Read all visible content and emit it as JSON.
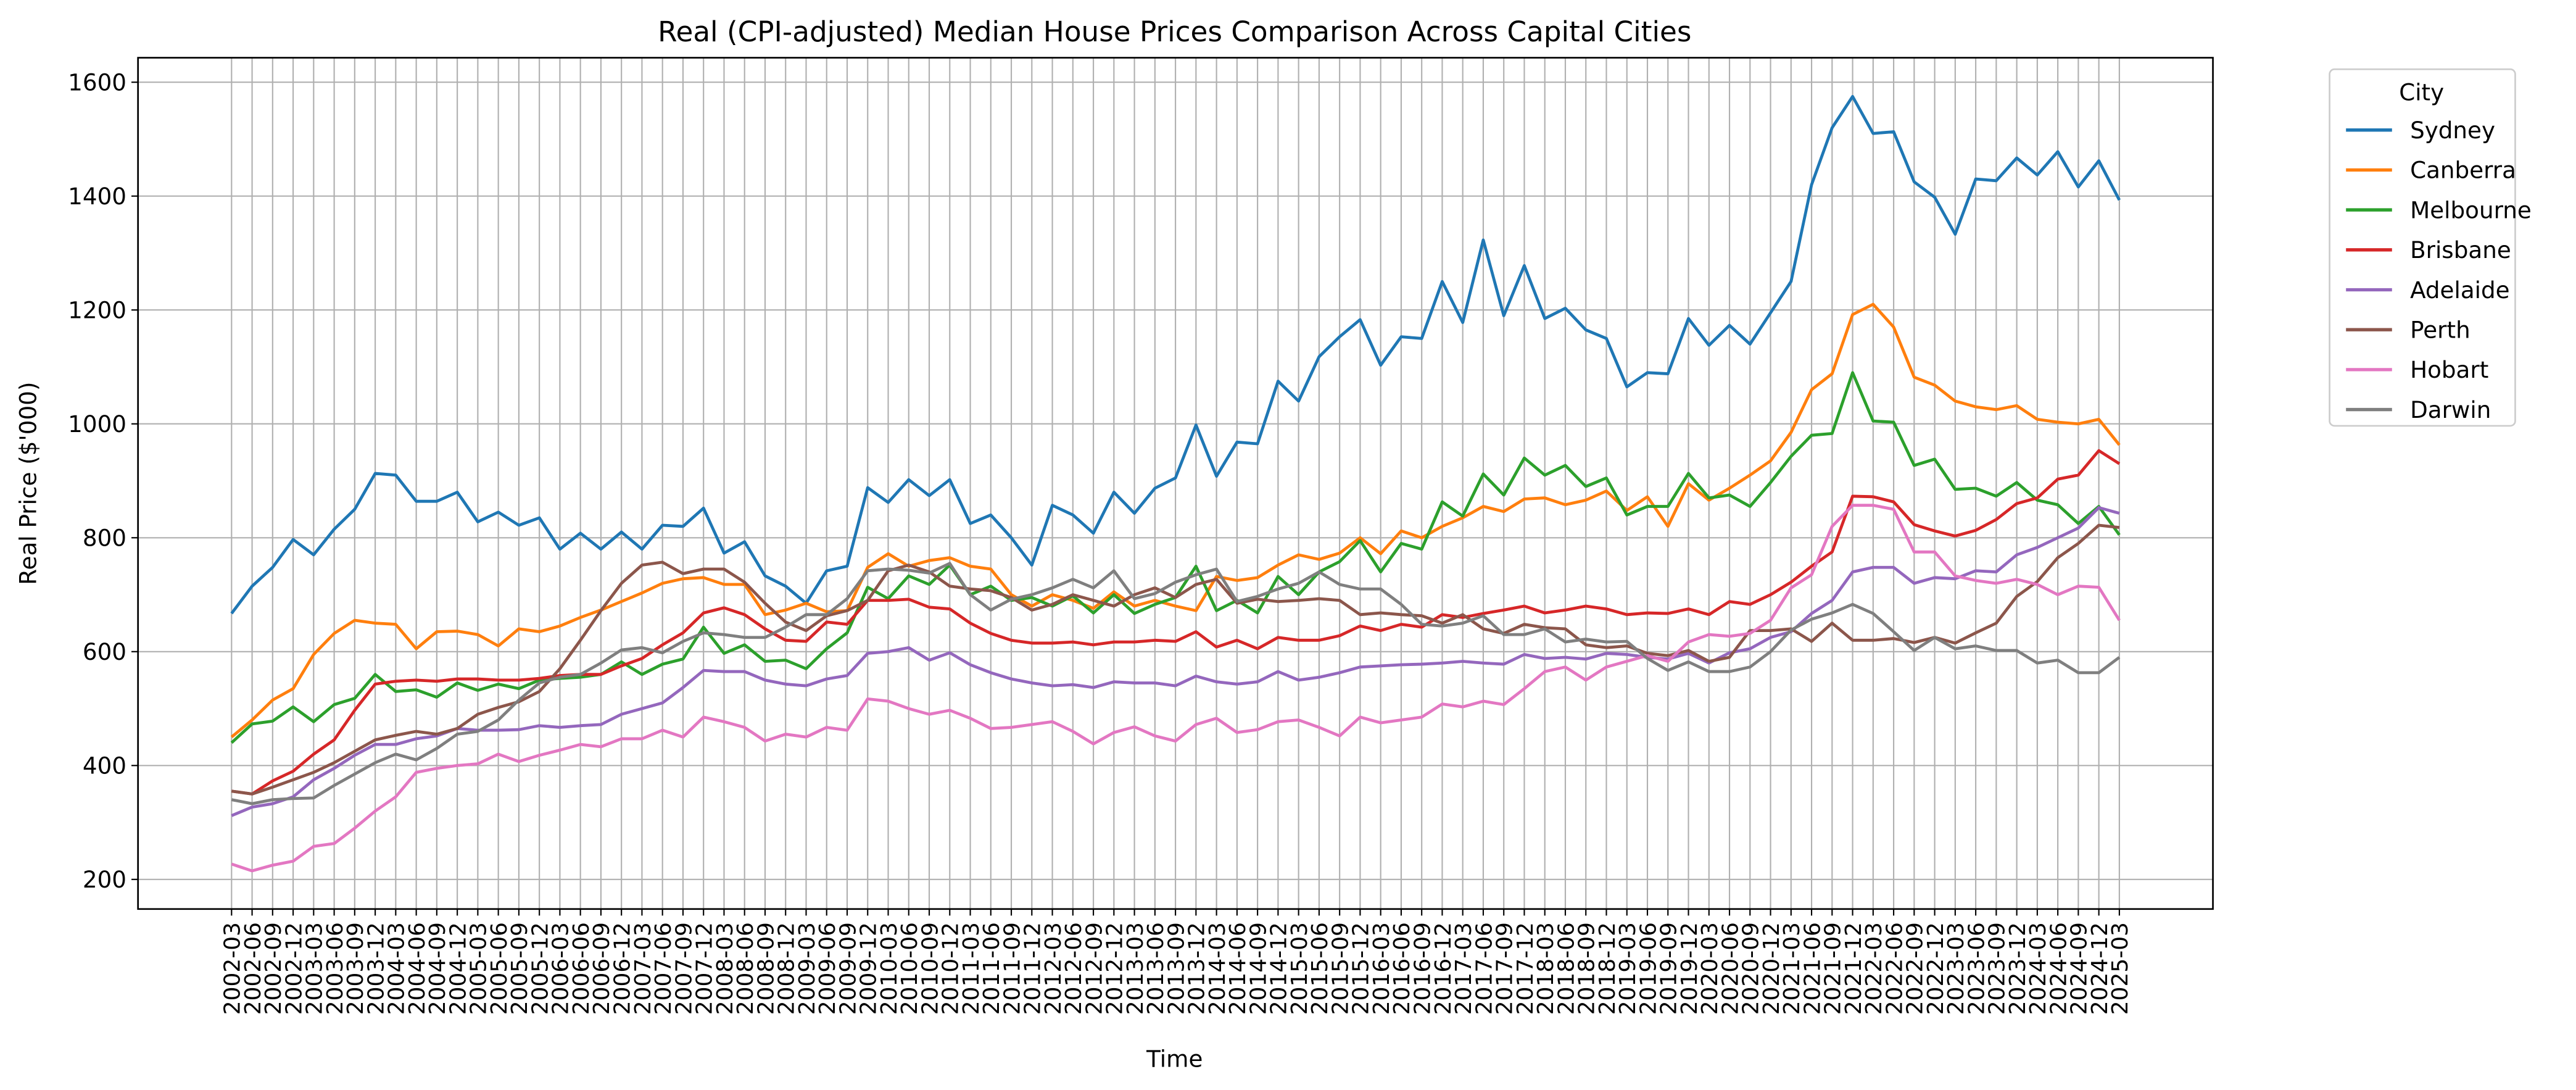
{
  "chart_data": {
    "type": "line",
    "title": "Real (CPI-adjusted) Median House Prices Comparison Across Capital Cities",
    "xlabel": "Time",
    "ylabel": "Real Price ($'000)",
    "legend_title": "City",
    "legend_position": "outside-upper-right",
    "grid": true,
    "categories": [
      "2002-03",
      "2002-06",
      "2002-09",
      "2002-12",
      "2003-03",
      "2003-06",
      "2003-09",
      "2003-12",
      "2004-03",
      "2004-06",
      "2004-09",
      "2004-12",
      "2005-03",
      "2005-06",
      "2005-09",
      "2005-12",
      "2006-03",
      "2006-06",
      "2006-09",
      "2006-12",
      "2007-03",
      "2007-06",
      "2007-09",
      "2007-12",
      "2008-03",
      "2008-06",
      "2008-09",
      "2008-12",
      "2009-03",
      "2009-06",
      "2009-09",
      "2009-12",
      "2010-03",
      "2010-06",
      "2010-09",
      "2010-12",
      "2011-03",
      "2011-06",
      "2011-09",
      "2011-12",
      "2012-03",
      "2012-06",
      "2012-09",
      "2012-12",
      "2013-03",
      "2013-06",
      "2013-09",
      "2013-12",
      "2014-03",
      "2014-06",
      "2014-09",
      "2014-12",
      "2015-03",
      "2015-06",
      "2015-09",
      "2015-12",
      "2016-03",
      "2016-06",
      "2016-09",
      "2016-12",
      "2017-03",
      "2017-06",
      "2017-09",
      "2017-12",
      "2018-03",
      "2018-06",
      "2018-09",
      "2018-12",
      "2019-03",
      "2019-06",
      "2019-09",
      "2019-12",
      "2020-03",
      "2020-06",
      "2020-09",
      "2020-12",
      "2021-03",
      "2021-06",
      "2021-09",
      "2021-12",
      "2022-03",
      "2022-06",
      "2022-09",
      "2022-12",
      "2023-03",
      "2023-06",
      "2023-09",
      "2023-12",
      "2024-03",
      "2024-06",
      "2024-09",
      "2024-12",
      "2025-03"
    ],
    "ylim": [
      148,
      1643
    ],
    "yticks": [
      200,
      400,
      600,
      800,
      1000,
      1200,
      1400,
      1600
    ],
    "series": [
      {
        "name": "Sydney",
        "color": "#1f77b4",
        "values": [
          667,
          715,
          748,
          797,
          770,
          815,
          850,
          913,
          910,
          864,
          864,
          880,
          828,
          845,
          822,
          835,
          780,
          808,
          780,
          810,
          780,
          822,
          820,
          852,
          773,
          793,
          733,
          715,
          685,
          742,
          750,
          888,
          862,
          902,
          874,
          902,
          825,
          840,
          800,
          752,
          857,
          840,
          808,
          880,
          843,
          887,
          905,
          998,
          908,
          968,
          965,
          1075,
          1040,
          1118,
          1153,
          1183,
          1103,
          1153,
          1150,
          1250,
          1178,
          1323,
          1190,
          1278,
          1185,
          1203,
          1165,
          1150,
          1065,
          1090,
          1088,
          1185,
          1138,
          1173,
          1140,
          1195,
          1250,
          1420,
          1520,
          1575,
          1510,
          1513,
          1425,
          1398,
          1333,
          1430,
          1427,
          1467,
          1437,
          1478,
          1416,
          1462,
          1393
        ]
      },
      {
        "name": "Canberra",
        "color": "#ff7f0e",
        "values": [
          450,
          480,
          515,
          535,
          595,
          632,
          655,
          650,
          648,
          605,
          635,
          636,
          630,
          610,
          640,
          635,
          645,
          660,
          673,
          688,
          703,
          720,
          728,
          730,
          718,
          718,
          665,
          673,
          685,
          670,
          672,
          748,
          772,
          750,
          760,
          765,
          750,
          745,
          700,
          680,
          700,
          690,
          676,
          705,
          680,
          690,
          680,
          672,
          732,
          725,
          730,
          752,
          770,
          762,
          773,
          800,
          772,
          812,
          800,
          820,
          835,
          855,
          846,
          868,
          870,
          858,
          866,
          882,
          848,
          872,
          820,
          895,
          866,
          887,
          910,
          935,
          985,
          1060,
          1088,
          1192,
          1210,
          1170,
          1082,
          1068,
          1040,
          1030,
          1025,
          1032,
          1008,
          1003,
          1000,
          1008,
          963
        ]
      },
      {
        "name": "Melbourne",
        "color": "#2ca02c",
        "values": [
          440,
          473,
          478,
          503,
          477,
          507,
          518,
          560,
          530,
          533,
          520,
          545,
          532,
          543,
          535,
          550,
          553,
          555,
          560,
          582,
          560,
          578,
          587,
          643,
          597,
          612,
          583,
          585,
          570,
          605,
          633,
          713,
          693,
          733,
          718,
          752,
          700,
          715,
          690,
          695,
          680,
          698,
          668,
          700,
          667,
          683,
          695,
          750,
          672,
          690,
          668,
          732,
          700,
          740,
          758,
          795,
          740,
          790,
          780,
          863,
          838,
          912,
          875,
          940,
          910,
          927,
          890,
          905,
          840,
          855,
          855,
          913,
          870,
          875,
          855,
          897,
          943,
          980,
          983,
          1090,
          1005,
          1003,
          927,
          938,
          885,
          887,
          873,
          897,
          866,
          858,
          825,
          855,
          805
        ]
      },
      {
        "name": "Brisbane",
        "color": "#d62728",
        "values": [
          355,
          350,
          373,
          390,
          420,
          445,
          497,
          543,
          548,
          550,
          548,
          552,
          552,
          550,
          550,
          553,
          558,
          560,
          560,
          575,
          588,
          612,
          633,
          668,
          677,
          665,
          640,
          620,
          618,
          652,
          648,
          690,
          690,
          692,
          678,
          675,
          650,
          632,
          620,
          615,
          615,
          617,
          612,
          617,
          617,
          620,
          618,
          635,
          608,
          620,
          605,
          625,
          620,
          620,
          628,
          645,
          637,
          648,
          643,
          665,
          660,
          667,
          673,
          680,
          668,
          673,
          680,
          675,
          665,
          668,
          667,
          675,
          665,
          688,
          683,
          700,
          722,
          750,
          775,
          873,
          872,
          863,
          823,
          812,
          803,
          813,
          832,
          860,
          870,
          903,
          910,
          953,
          930
        ]
      },
      {
        "name": "Adelaide",
        "color": "#9467bd",
        "values": [
          312,
          327,
          333,
          345,
          375,
          395,
          418,
          437,
          437,
          447,
          452,
          465,
          462,
          462,
          463,
          470,
          467,
          470,
          472,
          490,
          500,
          510,
          537,
          567,
          565,
          565,
          550,
          543,
          540,
          552,
          558,
          597,
          600,
          607,
          585,
          598,
          577,
          563,
          552,
          545,
          540,
          542,
          537,
          547,
          545,
          545,
          540,
          557,
          547,
          543,
          547,
          565,
          550,
          555,
          563,
          573,
          575,
          577,
          578,
          580,
          583,
          580,
          578,
          595,
          588,
          590,
          587,
          597,
          595,
          590,
          587,
          597,
          580,
          598,
          605,
          625,
          635,
          667,
          690,
          740,
          748,
          748,
          720,
          730,
          728,
          742,
          740,
          770,
          783,
          800,
          817,
          853,
          843
        ]
      },
      {
        "name": "Perth",
        "color": "#8c564b",
        "values": [
          355,
          350,
          362,
          375,
          388,
          405,
          425,
          445,
          453,
          460,
          455,
          465,
          490,
          502,
          512,
          530,
          570,
          620,
          672,
          720,
          752,
          757,
          737,
          745,
          745,
          722,
          685,
          652,
          637,
          663,
          672,
          690,
          742,
          752,
          740,
          715,
          710,
          707,
          695,
          673,
          683,
          700,
          690,
          680,
          700,
          712,
          695,
          718,
          727,
          685,
          692,
          688,
          690,
          693,
          690,
          665,
          668,
          665,
          663,
          650,
          665,
          640,
          632,
          648,
          642,
          640,
          612,
          607,
          610,
          597,
          593,
          602,
          583,
          590,
          637,
          637,
          640,
          618,
          650,
          620,
          620,
          623,
          616,
          625,
          615,
          633,
          650,
          697,
          723,
          765,
          790,
          822,
          818
        ]
      },
      {
        "name": "Hobart",
        "color": "#e377c2",
        "values": [
          227,
          215,
          225,
          232,
          258,
          263,
          290,
          320,
          345,
          388,
          395,
          400,
          403,
          420,
          407,
          418,
          427,
          437,
          433,
          447,
          447,
          462,
          450,
          485,
          477,
          467,
          443,
          455,
          450,
          467,
          462,
          517,
          513,
          500,
          490,
          497,
          483,
          465,
          467,
          472,
          477,
          460,
          438,
          458,
          468,
          452,
          443,
          472,
          483,
          458,
          463,
          477,
          480,
          467,
          452,
          485,
          475,
          480,
          485,
          508,
          503,
          513,
          507,
          535,
          565,
          573,
          550,
          573,
          583,
          593,
          583,
          617,
          630,
          627,
          632,
          655,
          712,
          735,
          820,
          857,
          857,
          850,
          775,
          775,
          733,
          725,
          720,
          727,
          718,
          700,
          715,
          713,
          655
        ]
      },
      {
        "name": "Darwin",
        "color": "#7f7f7f",
        "values": [
          340,
          333,
          340,
          342,
          343,
          365,
          385,
          405,
          420,
          410,
          430,
          455,
          460,
          480,
          515,
          545,
          555,
          560,
          580,
          603,
          607,
          598,
          618,
          633,
          630,
          625,
          625,
          643,
          665,
          665,
          693,
          742,
          745,
          743,
          738,
          755,
          700,
          673,
          692,
          700,
          712,
          727,
          712,
          742,
          693,
          702,
          722,
          735,
          745,
          688,
          697,
          710,
          720,
          740,
          718,
          710,
          710,
          683,
          648,
          645,
          650,
          663,
          630,
          630,
          640,
          617,
          622,
          617,
          618,
          588,
          567,
          582,
          565,
          565,
          573,
          600,
          638,
          657,
          668,
          683,
          667,
          635,
          602,
          625,
          605,
          610,
          602,
          602,
          580,
          585,
          563,
          563,
          590
        ]
      }
    ]
  }
}
